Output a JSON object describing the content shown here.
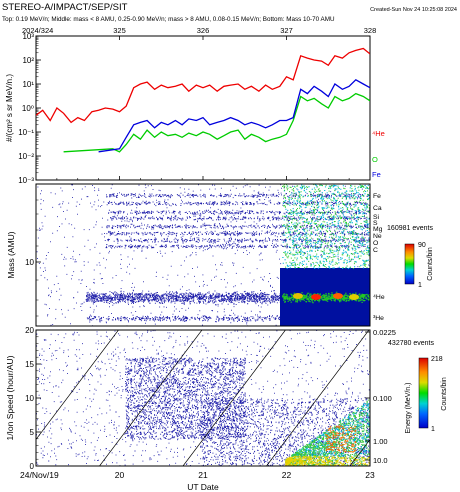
{
  "header": {
    "title": "STEREO-A/IMPACT/SEP/SIT",
    "created": "Created-Sun Nov 24 10:25:08 2024",
    "subtitle": "Top: 0.19 MeV/n; Middle: mass < 8 AMU, 0.25-0.90 MeV/n; mass > 8 AMU, 0.08-0.15 MeV/n; Bottom: Mass 10-70 AMU"
  },
  "top_axis": {
    "labels": [
      "2024/324",
      "325",
      "326",
      "327",
      "328"
    ]
  },
  "bottom_axis": {
    "labels": [
      "24/Nov/19",
      "20",
      "21",
      "22",
      "23"
    ],
    "xlabel": "UT Date"
  },
  "colors": {
    "he4": "#ee0000",
    "o": "#00cc00",
    "fe": "#0000dd"
  },
  "chart_data": [
    {
      "type": "line",
      "ylabel": "#/(cm² s sr MeV/n.)",
      "yscale": "log",
      "ylim": [
        0.001,
        1000
      ],
      "ytick_labels": [
        "10⁻³",
        "10⁻²",
        "10⁻¹",
        "10⁰",
        "10¹",
        "10²",
        "10³"
      ],
      "xlim": [
        324,
        328
      ],
      "series": [
        {
          "name": "⁴He",
          "x": [
            324.0,
            324.08,
            324.17,
            324.25,
            324.33,
            324.42,
            324.5,
            324.58,
            324.67,
            324.75,
            324.83,
            324.92,
            325.0,
            325.08,
            325.17,
            325.25,
            325.33,
            325.42,
            325.5,
            325.58,
            325.67,
            325.75,
            325.83,
            325.92,
            326.0,
            326.08,
            326.17,
            326.25,
            326.33,
            326.42,
            326.5,
            326.58,
            326.67,
            326.75,
            326.83,
            326.92,
            327.0,
            327.08,
            327.17,
            327.25,
            327.33,
            327.42,
            327.5,
            327.58,
            327.67,
            327.75,
            327.83,
            327.92,
            328.0
          ],
          "y": [
            0.5,
            0.8,
            0.3,
            1.0,
            0.6,
            0.25,
            0.4,
            0.3,
            0.7,
            0.8,
            1.0,
            0.9,
            0.7,
            1.2,
            7,
            10,
            12,
            6,
            9,
            7,
            8,
            10,
            5,
            9,
            7,
            9,
            5,
            8,
            9,
            10,
            6,
            8,
            5,
            9,
            6,
            8,
            20,
            15,
            150,
            120,
            100,
            90,
            60,
            150,
            120,
            200,
            250,
            300,
            180
          ]
        },
        {
          "name": "O",
          "x": [
            324.33,
            324.92,
            325.0,
            325.08,
            325.17,
            325.25,
            325.33,
            325.42,
            325.5,
            325.58,
            325.67,
            325.75,
            325.83,
            325.92,
            326.0,
            326.08,
            326.17,
            326.25,
            326.33,
            326.42,
            326.5,
            326.58,
            326.67,
            326.75,
            326.83,
            326.92,
            327.0,
            327.08,
            327.17,
            327.25,
            327.33,
            327.42,
            327.5,
            327.58,
            327.67,
            327.75,
            327.83,
            327.92,
            328.0
          ],
          "y": [
            0.015,
            0.02,
            0.015,
            0.03,
            0.08,
            0.05,
            0.12,
            0.06,
            0.1,
            0.07,
            0.08,
            0.06,
            0.09,
            0.07,
            0.1,
            0.08,
            0.05,
            0.07,
            0.1,
            0.12,
            0.05,
            0.08,
            0.06,
            0.04,
            0.05,
            0.06,
            0.08,
            0.3,
            3,
            2,
            2.5,
            1.5,
            1,
            3,
            2,
            2.5,
            4,
            3,
            2
          ]
        },
        {
          "name": "Fe",
          "x": [
            324.75,
            325.0,
            325.08,
            325.17,
            325.25,
            325.33,
            325.42,
            325.5,
            325.58,
            325.67,
            325.75,
            325.83,
            325.92,
            326.0,
            326.08,
            326.17,
            326.25,
            326.33,
            326.42,
            326.5,
            326.58,
            326.67,
            326.75,
            326.83,
            326.92,
            327.0,
            327.08,
            327.17,
            327.25,
            327.33,
            327.42,
            327.5,
            327.58,
            327.67,
            327.75,
            327.83,
            327.92,
            328.0
          ],
          "y": [
            0.015,
            0.02,
            0.06,
            0.2,
            0.25,
            0.3,
            0.15,
            0.25,
            0.2,
            0.3,
            0.2,
            0.35,
            0.3,
            0.4,
            0.2,
            0.25,
            0.3,
            0.4,
            0.3,
            0.2,
            0.25,
            0.2,
            0.15,
            0.2,
            0.3,
            0.3,
            0.4,
            6,
            4,
            8,
            5,
            3,
            10,
            6,
            8,
            15,
            10,
            7
          ]
        }
      ]
    },
    {
      "type": "heatmap",
      "ylabel": "Mass (AMU)",
      "yscale": "log",
      "ytick_labels": [
        "10"
      ],
      "element_labels": [
        "Fe",
        "Ca",
        "Si",
        "S",
        "Mg",
        "Ne",
        "O",
        "C",
        "⁴He",
        "³He"
      ],
      "events_label": "160981 events",
      "colorbar": {
        "label": "Counts/bin",
        "min": 1,
        "max": 90
      }
    },
    {
      "type": "heatmap",
      "ylabel": "1/Ion Speed (hour/AU)",
      "ylim": [
        0,
        20
      ],
      "ytick_labels": [
        "0",
        "5",
        "10",
        "15",
        "20"
      ],
      "right_ylabel": "Energy (MeV/n.)",
      "right_tick_labels": [
        "0.0225",
        "0.100",
        "1.00",
        "10.0"
      ],
      "events_label": "432780 events",
      "colorbar": {
        "label": "Counts/bin",
        "min": 1,
        "max": 218
      }
    }
  ]
}
